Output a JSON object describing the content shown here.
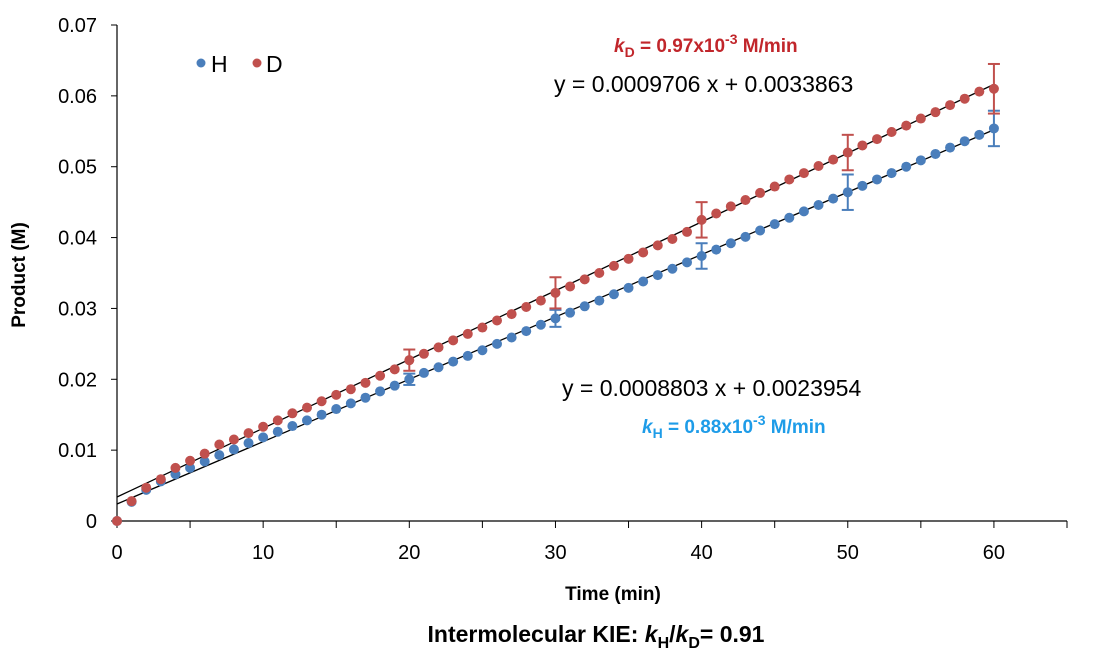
{
  "chart_data": {
    "type": "scatter",
    "xlabel": "Time (min)",
    "ylabel": "Product (M)",
    "xlim": [
      0,
      65
    ],
    "ylim": [
      0,
      0.07
    ],
    "x_ticks": [
      "0",
      "10",
      "20",
      "30",
      "40",
      "50",
      "60"
    ],
    "y_ticks": [
      "0",
      "0.01",
      "0.02",
      "0.03",
      "0.04",
      "0.05",
      "0.06",
      "0.07"
    ],
    "grid": false,
    "legend_position": "top-left",
    "series": [
      {
        "name": "H",
        "color": "#4a7ebb",
        "x": [
          0,
          1,
          2,
          3,
          4,
          5,
          6,
          7,
          8,
          9,
          10,
          11,
          12,
          13,
          14,
          15,
          16,
          17,
          18,
          19,
          20,
          21,
          22,
          23,
          24,
          25,
          26,
          27,
          28,
          29,
          30,
          31,
          32,
          33,
          34,
          35,
          36,
          37,
          38,
          39,
          40,
          41,
          42,
          43,
          44,
          45,
          46,
          47,
          48,
          49,
          50,
          51,
          52,
          53,
          54,
          55,
          56,
          57,
          58,
          59,
          60
        ],
        "y": [
          0,
          0.0027,
          0.0044,
          0.0056,
          0.0066,
          0.0075,
          0.0084,
          0.0093,
          0.0101,
          0.011,
          0.0118,
          0.0126,
          0.0134,
          0.0142,
          0.015,
          0.0158,
          0.0166,
          0.0174,
          0.0183,
          0.0191,
          0.02,
          0.0209,
          0.0217,
          0.0225,
          0.0233,
          0.0241,
          0.025,
          0.0259,
          0.0268,
          0.0277,
          0.0286,
          0.0294,
          0.0303,
          0.0311,
          0.032,
          0.0329,
          0.0338,
          0.0347,
          0.0356,
          0.0365,
          0.0374,
          0.0383,
          0.0392,
          0.0401,
          0.041,
          0.0419,
          0.0428,
          0.0437,
          0.0446,
          0.0455,
          0.0464,
          0.0473,
          0.0482,
          0.0491,
          0.05,
          0.0509,
          0.0518,
          0.0527,
          0.0536,
          0.0545,
          0.0554
        ],
        "error_bars": [
          {
            "x": 20,
            "y": 0.02,
            "err": 0.0008
          },
          {
            "x": 30,
            "y": 0.0286,
            "err": 0.0012
          },
          {
            "x": 40,
            "y": 0.0374,
            "err": 0.0018
          },
          {
            "x": 50,
            "y": 0.0464,
            "err": 0.0025
          },
          {
            "x": 60,
            "y": 0.0554,
            "err": 0.0025
          }
        ],
        "trendline": {
          "slope": 0.0008803,
          "intercept": 0.0023954,
          "equation": "y = 0.0008803 x + 0.0023954"
        },
        "rate_label": {
          "k": "k",
          "sub": "H",
          "mid": " = 0.88x10",
          "sup": "-3",
          "tail": " M/min",
          "color": "#1e9ce8"
        }
      },
      {
        "name": "D",
        "color": "#c0504d",
        "x": [
          0,
          1,
          2,
          3,
          4,
          5,
          6,
          7,
          8,
          9,
          10,
          11,
          12,
          13,
          14,
          15,
          16,
          17,
          18,
          19,
          20,
          21,
          22,
          23,
          24,
          25,
          26,
          27,
          28,
          29,
          30,
          31,
          32,
          33,
          34,
          35,
          36,
          37,
          38,
          39,
          40,
          41,
          42,
          43,
          44,
          45,
          46,
          47,
          48,
          49,
          50,
          51,
          52,
          53,
          54,
          55,
          56,
          57,
          58,
          59,
          60
        ],
        "y": [
          0,
          0.0028,
          0.0047,
          0.0059,
          0.0075,
          0.0085,
          0.0095,
          0.0108,
          0.0115,
          0.0124,
          0.0133,
          0.0142,
          0.0152,
          0.016,
          0.0169,
          0.0178,
          0.0186,
          0.0195,
          0.0205,
          0.0214,
          0.0227,
          0.0236,
          0.0245,
          0.0255,
          0.0264,
          0.0273,
          0.0283,
          0.0292,
          0.0302,
          0.0311,
          0.0322,
          0.0331,
          0.0341,
          0.035,
          0.036,
          0.037,
          0.0379,
          0.0389,
          0.0398,
          0.0408,
          0.0425,
          0.0434,
          0.0444,
          0.0453,
          0.0463,
          0.0472,
          0.0482,
          0.0491,
          0.0501,
          0.051,
          0.052,
          0.053,
          0.0539,
          0.0549,
          0.0558,
          0.0568,
          0.0577,
          0.0587,
          0.0596,
          0.0606,
          0.061
        ],
        "error_bars": [
          {
            "x": 20,
            "y": 0.0227,
            "err": 0.0015
          },
          {
            "x": 30,
            "y": 0.0322,
            "err": 0.0022
          },
          {
            "x": 40,
            "y": 0.0425,
            "err": 0.0025
          },
          {
            "x": 50,
            "y": 0.052,
            "err": 0.0025
          },
          {
            "x": 60,
            "y": 0.061,
            "err": 0.0035
          }
        ],
        "trendline": {
          "slope": 0.0009706,
          "intercept": 0.0033863,
          "equation": "y = 0.0009706 x + 0.0033863"
        },
        "rate_label": {
          "k": "k",
          "sub": "D",
          "mid": " = 0.97x10",
          "sup": "-3",
          "tail": " M/min",
          "color": "#c1262b"
        }
      }
    ],
    "caption": {
      "prefix": "Intermolecular KIE: ",
      "k1": "k",
      "sub1": "H",
      "slash": "/",
      "k2": "k",
      "sub2": "D",
      "suffix": "= 0.91"
    }
  }
}
